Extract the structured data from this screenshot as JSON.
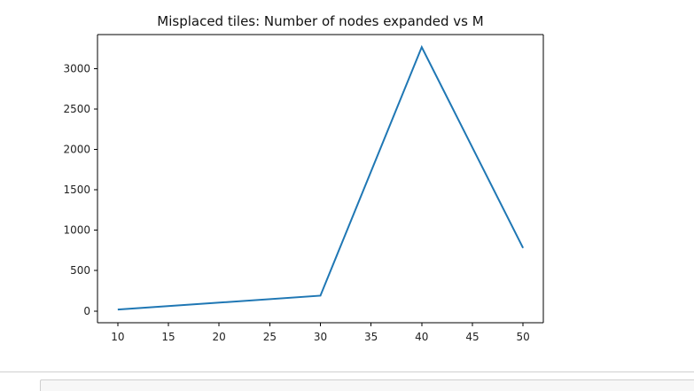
{
  "chart_data": {
    "type": "line",
    "title": "Misplaced tiles: Number of nodes expanded vs M",
    "xlabel": "",
    "ylabel": "",
    "x": [
      10,
      30,
      40,
      50
    ],
    "series": [
      {
        "values": [
          18,
          190,
          3265,
          780
        ]
      }
    ],
    "xlim": [
      8,
      52
    ],
    "ylim": [
      -145,
      3420
    ],
    "xticks": [
      10,
      15,
      20,
      25,
      30,
      35,
      40,
      45,
      50
    ],
    "yticks": [
      0,
      500,
      1000,
      1500,
      2000,
      2500,
      3000
    ],
    "grid": false,
    "line_color": "#1f77b4"
  }
}
